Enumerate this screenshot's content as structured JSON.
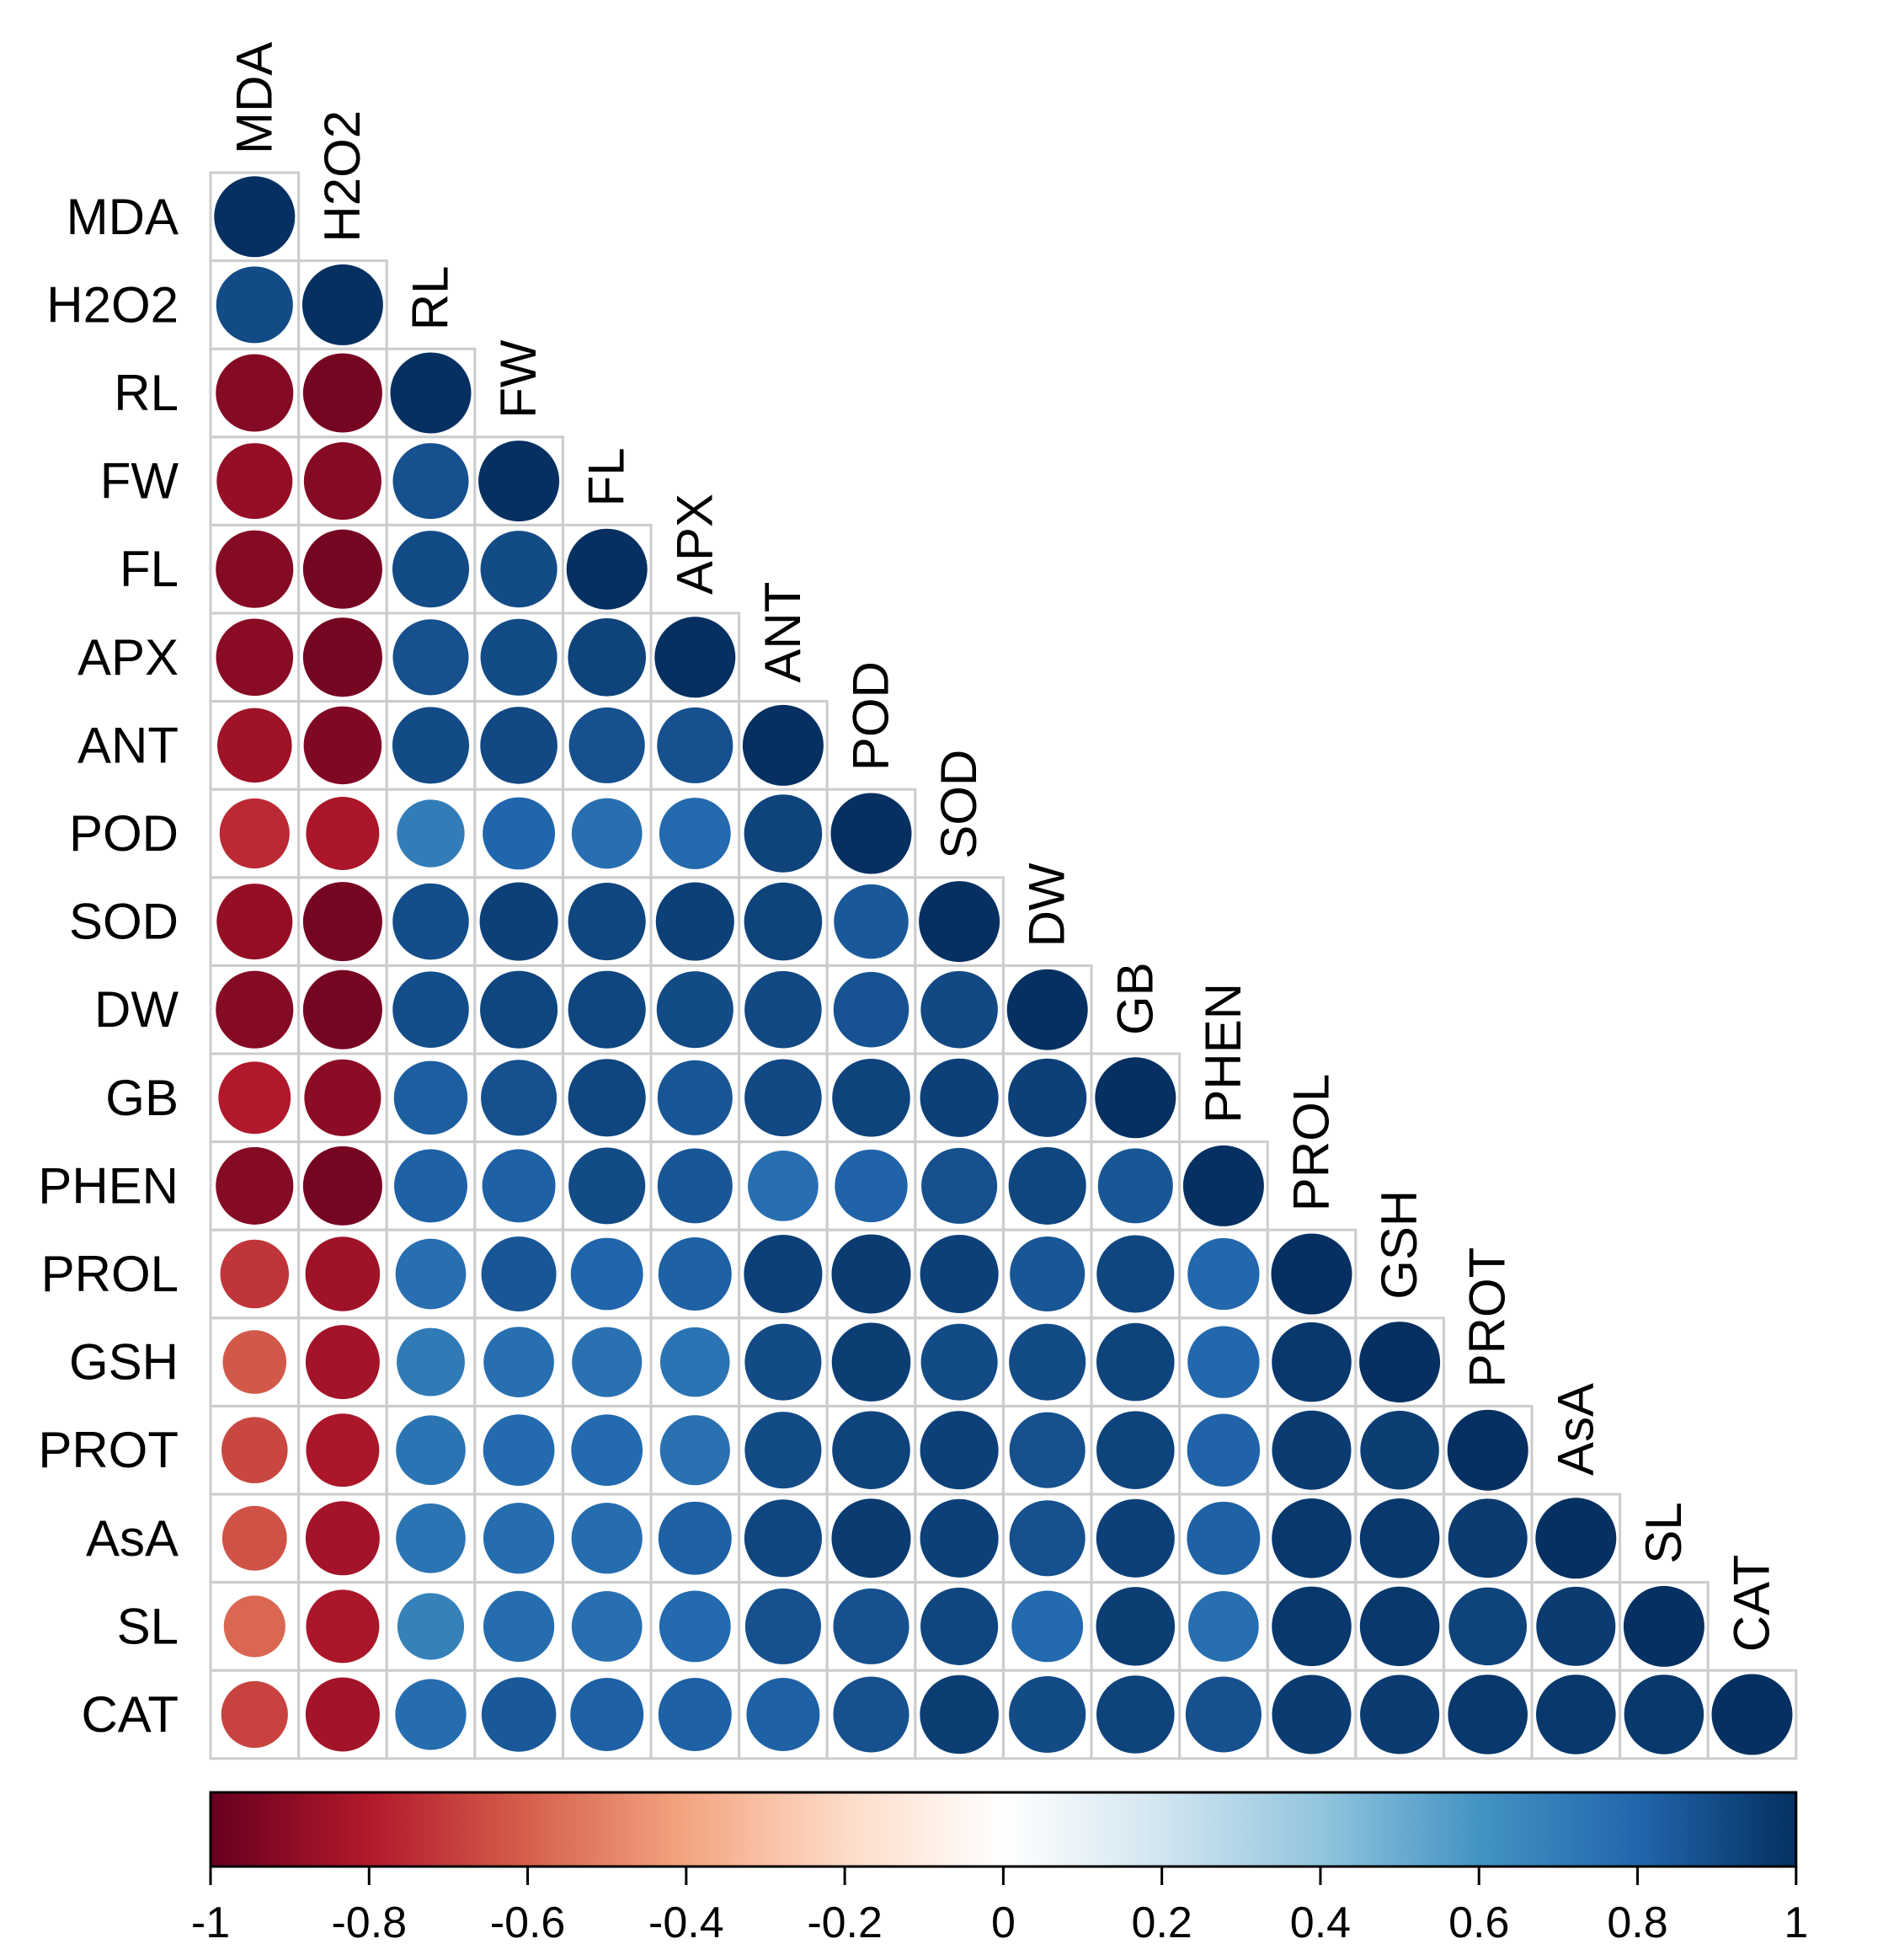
{
  "chart_data": {
    "type": "heatmap",
    "style": "corrplot-circle-lower-triangle",
    "variables": [
      "MDA",
      "H2O2",
      "RL",
      "FW",
      "FL",
      "APX",
      "ANT",
      "POD",
      "SOD",
      "DW",
      "GB",
      "PHEN",
      "PROL",
      "GSH",
      "PROT",
      "AsA",
      "SL",
      "CAT"
    ],
    "matrix": [
      [
        1.0
      ],
      [
        0.9,
        1.0
      ],
      [
        -0.92,
        -0.96,
        1.0
      ],
      [
        -0.88,
        -0.92,
        0.88,
        1.0
      ],
      [
        -0.92,
        -0.96,
        0.9,
        0.9,
        1.0
      ],
      [
        -0.91,
        -0.96,
        0.88,
        0.9,
        0.93,
        1.0
      ],
      [
        -0.85,
        -0.93,
        0.9,
        0.91,
        0.88,
        0.88,
        1.0
      ],
      [
        -0.75,
        -0.82,
        0.7,
        0.8,
        0.76,
        0.78,
        0.93,
        1.0
      ],
      [
        -0.88,
        -0.96,
        0.89,
        0.94,
        0.92,
        0.94,
        0.93,
        0.85,
        1.0
      ],
      [
        -0.92,
        -0.96,
        0.89,
        0.92,
        0.92,
        0.9,
        0.91,
        0.87,
        0.91,
        1.0
      ],
      [
        -0.8,
        -0.9,
        0.83,
        0.88,
        0.92,
        0.86,
        0.91,
        0.93,
        0.94,
        0.94,
        1.0
      ],
      [
        -0.92,
        -0.96,
        0.82,
        0.82,
        0.9,
        0.86,
        0.76,
        0.81,
        0.88,
        0.92,
        0.86,
        1.0
      ],
      [
        -0.72,
        -0.85,
        0.76,
        0.86,
        0.8,
        0.82,
        0.94,
        0.96,
        0.94,
        0.86,
        0.92,
        0.79,
        1.0
      ],
      [
        -0.62,
        -0.84,
        0.71,
        0.76,
        0.75,
        0.74,
        0.9,
        0.95,
        0.9,
        0.9,
        0.93,
        0.79,
        0.97,
        1.0
      ],
      [
        -0.67,
        -0.82,
        0.74,
        0.78,
        0.78,
        0.75,
        0.9,
        0.93,
        0.94,
        0.88,
        0.93,
        0.81,
        0.96,
        0.95,
        1.0
      ],
      [
        -0.64,
        -0.84,
        0.74,
        0.77,
        0.77,
        0.82,
        0.92,
        0.96,
        0.94,
        0.88,
        0.94,
        0.82,
        0.97,
        0.97,
        0.96,
        1.0
      ],
      [
        -0.58,
        -0.82,
        0.68,
        0.77,
        0.76,
        0.78,
        0.88,
        0.88,
        0.92,
        0.78,
        0.95,
        0.76,
        0.97,
        0.97,
        0.93,
        0.96,
        1.0
      ],
      [
        -0.68,
        -0.84,
        0.77,
        0.85,
        0.82,
        0.82,
        0.82,
        0.88,
        0.95,
        0.9,
        0.93,
        0.88,
        0.96,
        0.96,
        0.97,
        0.97,
        0.97,
        1.0
      ]
    ],
    "colorbar": {
      "range": [
        -1,
        1
      ],
      "ticks": [
        -1,
        -0.8,
        -0.6,
        -0.4,
        -0.2,
        0,
        0.2,
        0.4,
        0.6,
        0.8,
        1
      ],
      "tick_labels": [
        "-1",
        "-0.8",
        "-0.6",
        "-0.4",
        "-0.2",
        "0",
        "0.2",
        "0.4",
        "0.6",
        "0.8",
        "1"
      ],
      "colors": [
        "#67001F",
        "#B2182B",
        "#D6604D",
        "#F4A582",
        "#FDDBC7",
        "#FFFFFF",
        "#D1E5F0",
        "#92C5DE",
        "#4393C3",
        "#2166AC",
        "#053061"
      ]
    },
    "title": "",
    "xlabel": "",
    "ylabel": ""
  }
}
